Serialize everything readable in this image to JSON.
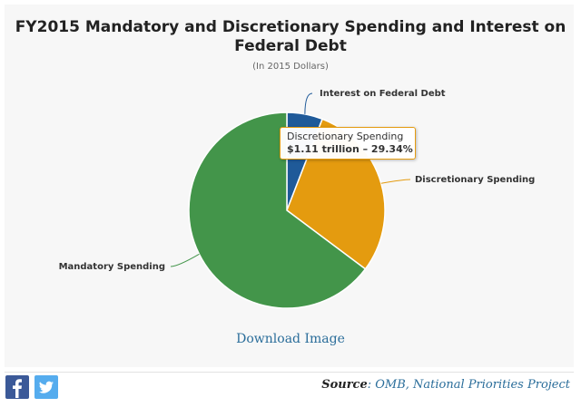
{
  "chart_data": {
    "type": "pie",
    "title_lines": [
      "FY2015 Mandatory and Discretionary Spending and Interest on",
      "Federal Debt"
    ],
    "subtitle": "(In 2015 Dollars)",
    "unit": "trillion",
    "slices": [
      {
        "name": "Interest on Federal Debt",
        "percent": 5.89,
        "color": "#1f5a99"
      },
      {
        "name": "Discretionary Spending",
        "percent": 29.34,
        "value_trillions": 1.11,
        "color": "#e49b0f"
      },
      {
        "name": "Mandatory Spending",
        "percent": 64.77,
        "color": "#43954a"
      }
    ],
    "tooltip": {
      "title": "Discretionary Spending",
      "value": "$1.11 trillion – 29.34%"
    }
  },
  "download_label": "Download Image",
  "source": {
    "label": "Source",
    "text": "OMB, National Priorities Project"
  },
  "social": {
    "facebook_icon": "facebook-icon",
    "twitter_icon": "twitter-icon"
  }
}
